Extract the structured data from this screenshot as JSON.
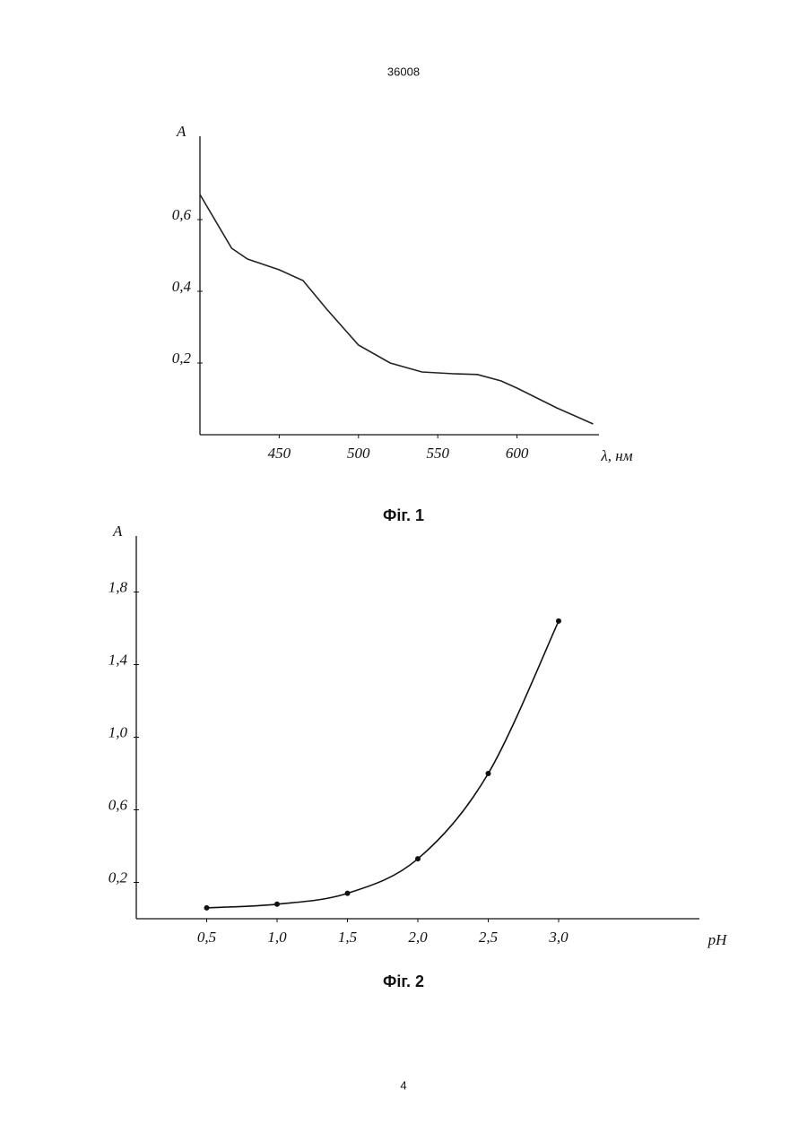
{
  "header": "36008",
  "page_number": "4",
  "chart_data": [
    {
      "type": "line",
      "caption": "Фіг. 1",
      "y_label": "A",
      "x_label": "λ, нм",
      "color": "#222",
      "x": [
        400,
        420,
        430,
        450,
        465,
        480,
        490,
        500,
        520,
        540,
        560,
        575,
        590,
        600,
        625,
        648
      ],
      "values": [
        0.67,
        0.52,
        0.49,
        0.46,
        0.43,
        0.35,
        0.3,
        0.25,
        0.2,
        0.175,
        0.17,
        0.168,
        0.15,
        0.13,
        0.075,
        0.03
      ],
      "xlim": [
        400,
        650
      ],
      "xticks": [
        450,
        500,
        550,
        600
      ],
      "ylim": [
        0,
        0.8
      ],
      "yticks": [
        {
          "value": 0.2,
          "label": "0,2"
        },
        {
          "value": 0.4,
          "label": "0,4"
        },
        {
          "value": 0.6,
          "label": "0,6"
        }
      ],
      "markers": false,
      "smooth": false
    },
    {
      "type": "line",
      "caption": "Фіг. 2",
      "y_label": "A",
      "x_label": "pH",
      "color": "#111",
      "x": [
        0.5,
        1.0,
        1.5,
        2.0,
        2.5,
        3.0
      ],
      "values": [
        0.06,
        0.08,
        0.14,
        0.33,
        0.8,
        1.64
      ],
      "xlim": [
        0,
        4
      ],
      "xticks": [
        {
          "value": 0.5,
          "label": "0,5"
        },
        {
          "value": 1.0,
          "label": "1,0"
        },
        {
          "value": 1.5,
          "label": "1,5"
        },
        {
          "value": 2.0,
          "label": "2,0"
        },
        {
          "value": 2.5,
          "label": "2,5"
        },
        {
          "value": 3.0,
          "label": "3,0"
        }
      ],
      "ylim": [
        0,
        2
      ],
      "yticks": [
        {
          "value": 0.2,
          "label": "0,2"
        },
        {
          "value": 0.6,
          "label": "0,6"
        },
        {
          "value": 1.0,
          "label": "1,0"
        },
        {
          "value": 1.4,
          "label": "1,4"
        },
        {
          "value": 1.8,
          "label": "1,8"
        }
      ],
      "markers": true,
      "smooth": true
    }
  ]
}
